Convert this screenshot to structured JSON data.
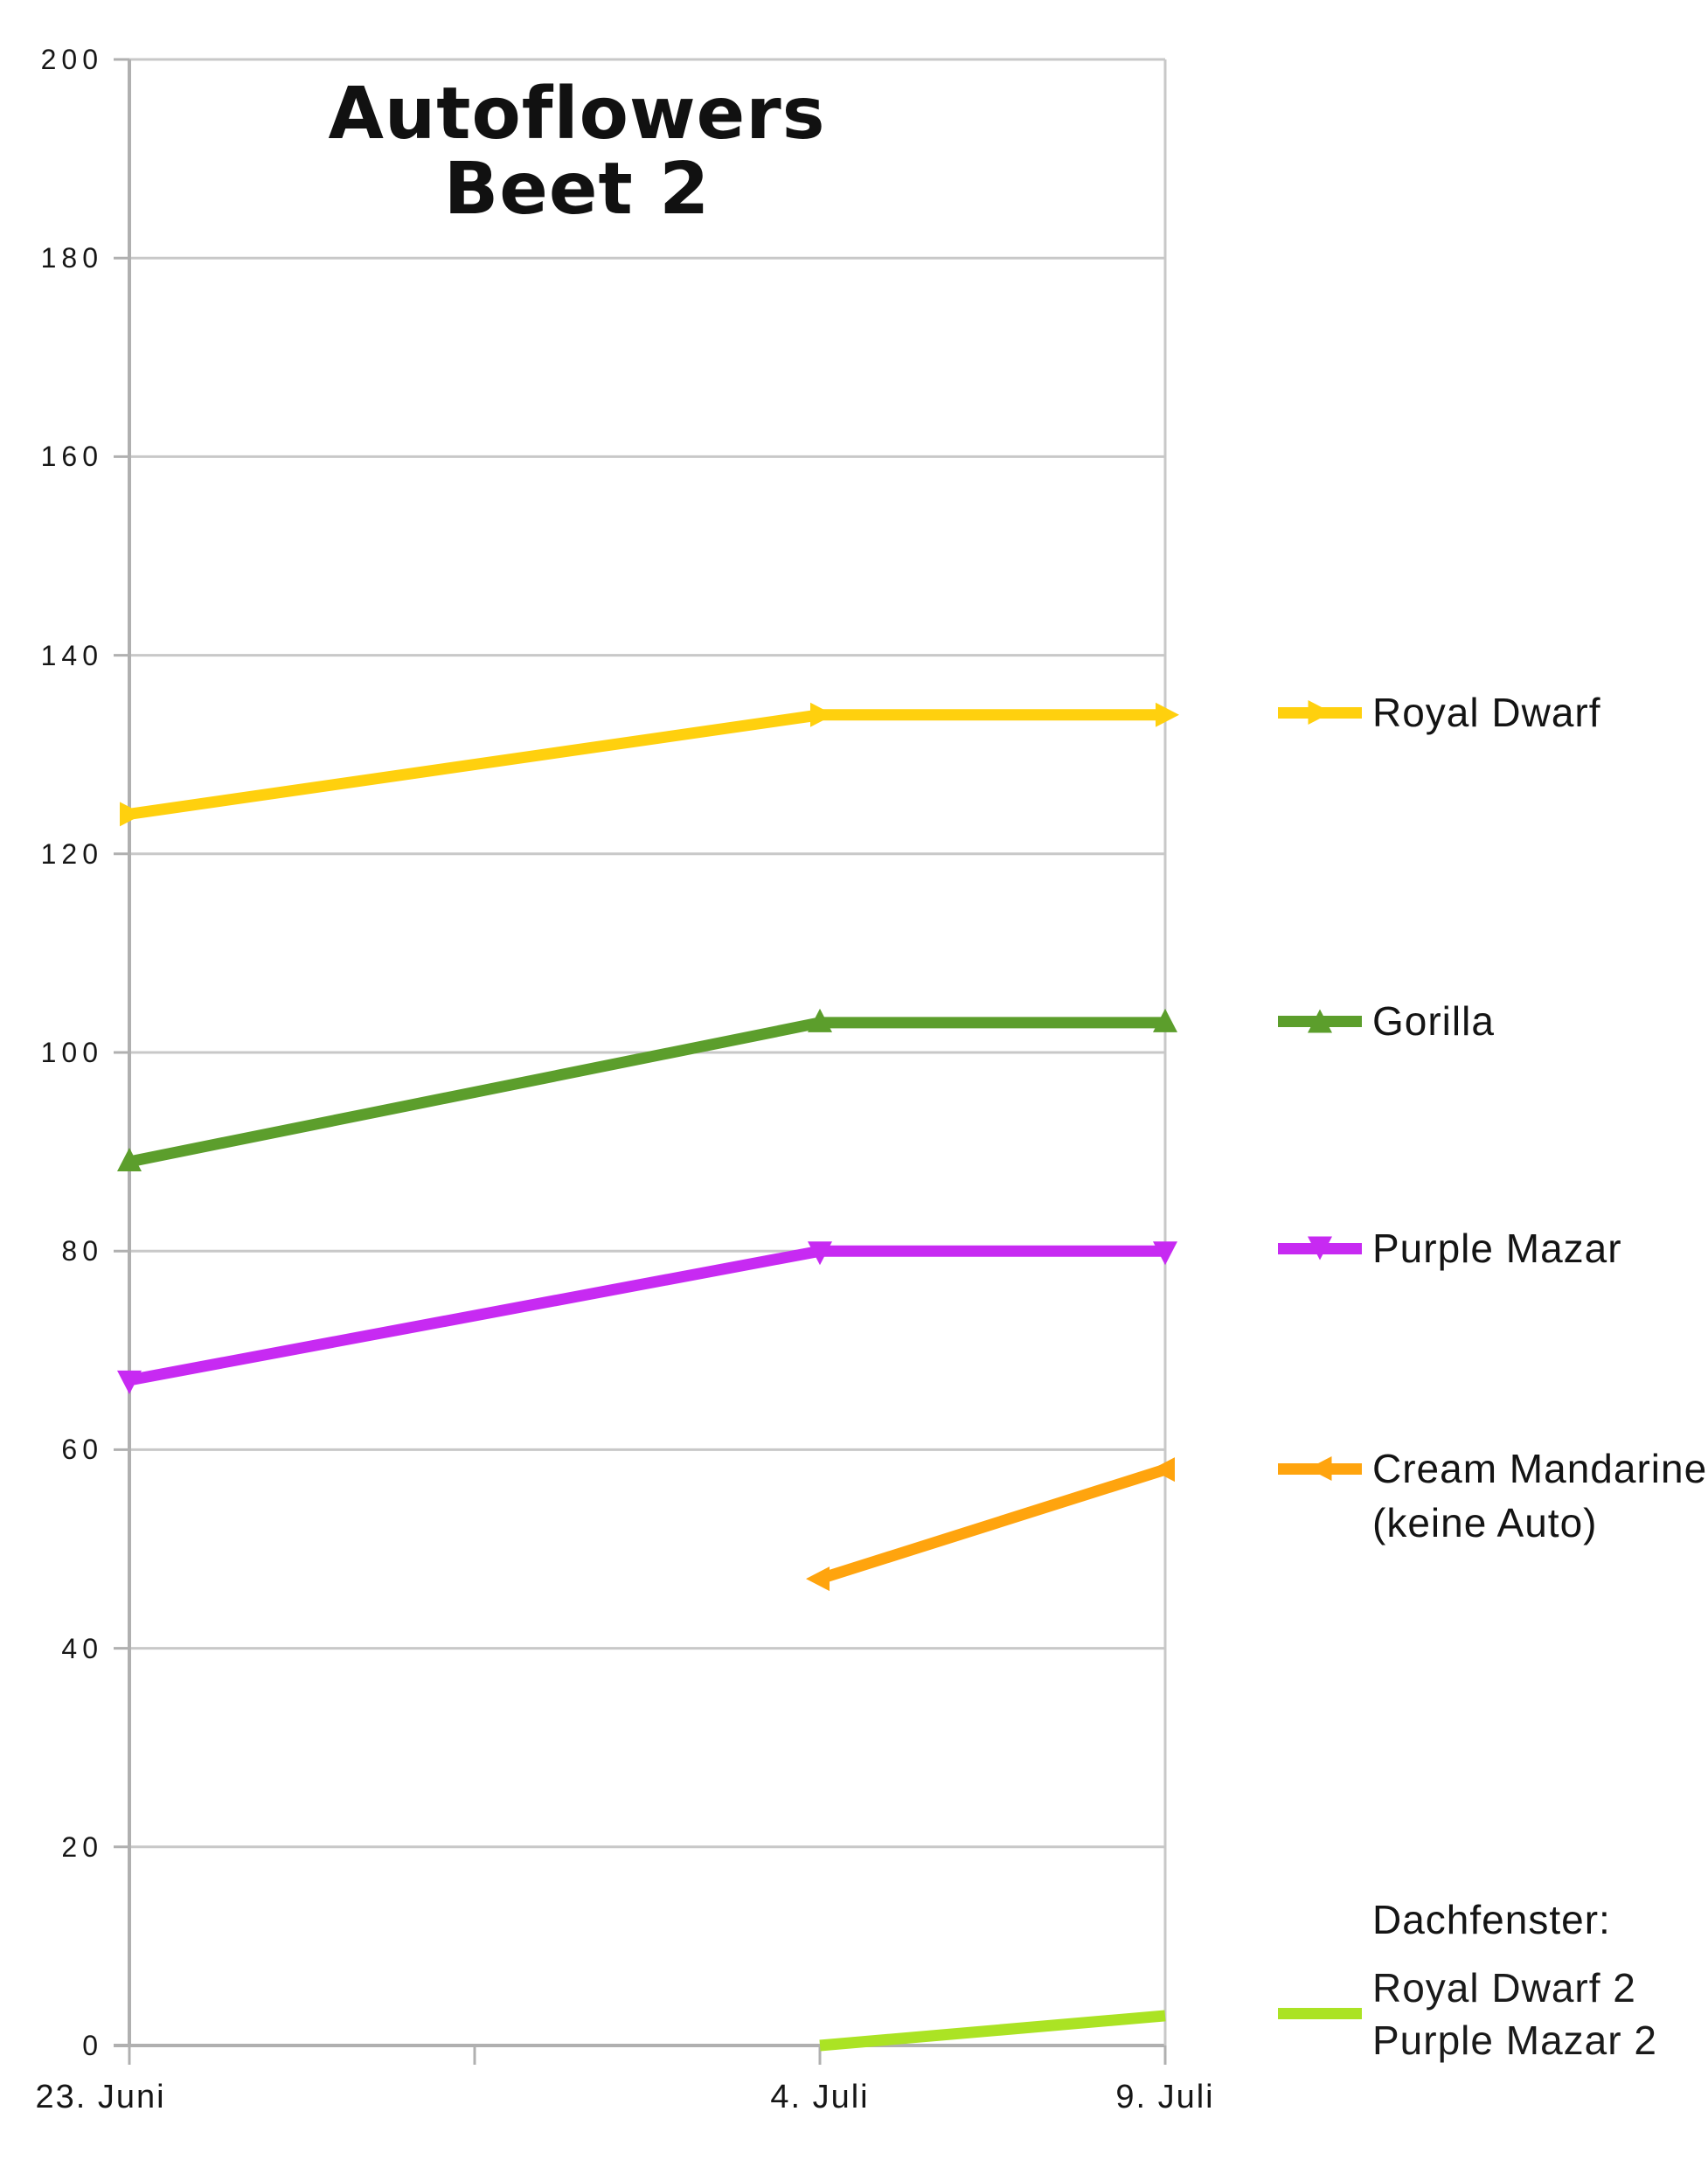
{
  "chart_data": {
    "type": "line",
    "title": "Autoflowers Beet 2",
    "title_lines": [
      "Autoflowers",
      "Beet 2"
    ],
    "x_categories": [
      "23. Juni",
      "",
      "4. Juli",
      "9. Juli"
    ],
    "y_axis": {
      "min": 0,
      "max": 200,
      "step": 20
    },
    "ylim": [
      0,
      200
    ],
    "grid": "horizontal",
    "legend_position": "right",
    "series": [
      {
        "name": "Royal Dwarf",
        "color": "#FFD00E",
        "marker": "triangle-right",
        "values": [
          124,
          null,
          134,
          134
        ]
      },
      {
        "name": "Gorilla",
        "color": "#5C9E2C",
        "marker": "triangle-up",
        "values": [
          89,
          null,
          103,
          103
        ]
      },
      {
        "name": "Purple Mazar",
        "color": "#C72AF2",
        "marker": "triangle-down",
        "values": [
          67,
          null,
          80,
          80
        ]
      },
      {
        "name": "Cream Mandarine (keine Auto)",
        "color": "#FFA40E",
        "marker": "triangle-left",
        "values": [
          null,
          null,
          47,
          58
        ]
      },
      {
        "name": "Royal Dwarf 2 / Purple Mazar 2 (Dachfenster)",
        "color": "#ABE324",
        "marker": "none",
        "values": [
          null,
          null,
          0,
          3
        ]
      }
    ]
  },
  "legend": {
    "items": [
      {
        "label": "Royal Dwarf",
        "color": "#FFD00E",
        "marker": "triangle-right"
      },
      {
        "label": "Gorilla",
        "color": "#5C9E2C",
        "marker": "triangle-up"
      },
      {
        "label": "Purple Mazar",
        "color": "#C72AF2",
        "marker": "triangle-down"
      },
      {
        "label": "Cream Mandarine",
        "label2": "(keine Auto)",
        "color": "#FFA40E",
        "marker": "triangle-left"
      }
    ],
    "footer": {
      "heading": "Dachfenster:",
      "line1": "Royal Dwarf 2",
      "line2": "Purple Mazar 2",
      "color": "#ABE324"
    }
  },
  "colors": {
    "gridline": "#C8C8C8",
    "axis": "#B0B0B0",
    "text": "#161616"
  }
}
